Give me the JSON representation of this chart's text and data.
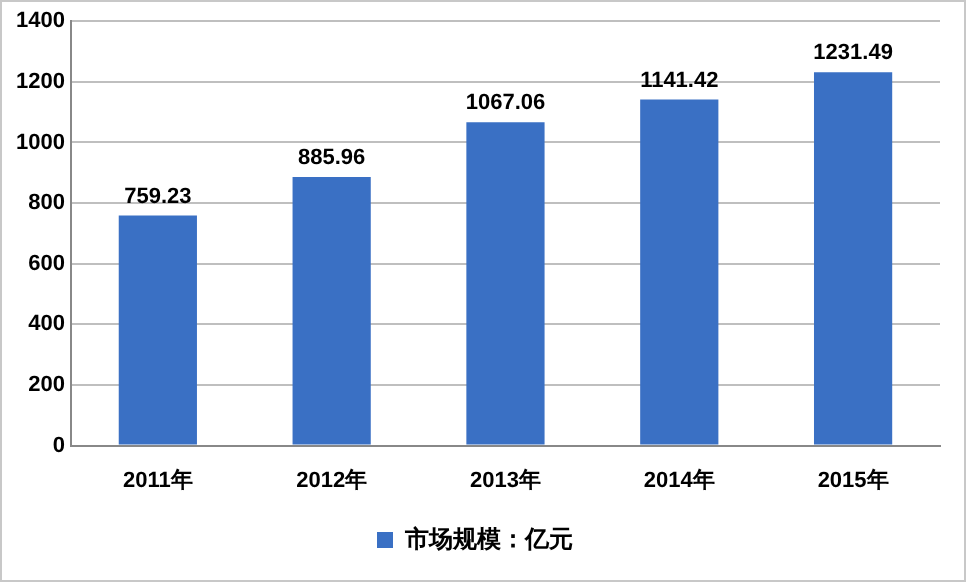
{
  "chart_data": {
    "type": "bar",
    "categories": [
      "2011年",
      "2012年",
      "2013年",
      "2014年",
      "2015年"
    ],
    "series": [
      {
        "name": "市场规模：亿元",
        "color": "#3a70c4",
        "values": [
          759.23,
          885.96,
          1067.06,
          1141.42,
          1231.49
        ]
      }
    ],
    "ylim": [
      0,
      1400
    ],
    "yticks": [
      0,
      200,
      400,
      600,
      800,
      1000,
      1200,
      1400
    ],
    "grid": "y",
    "legend": "bottom",
    "data_labels": true
  }
}
